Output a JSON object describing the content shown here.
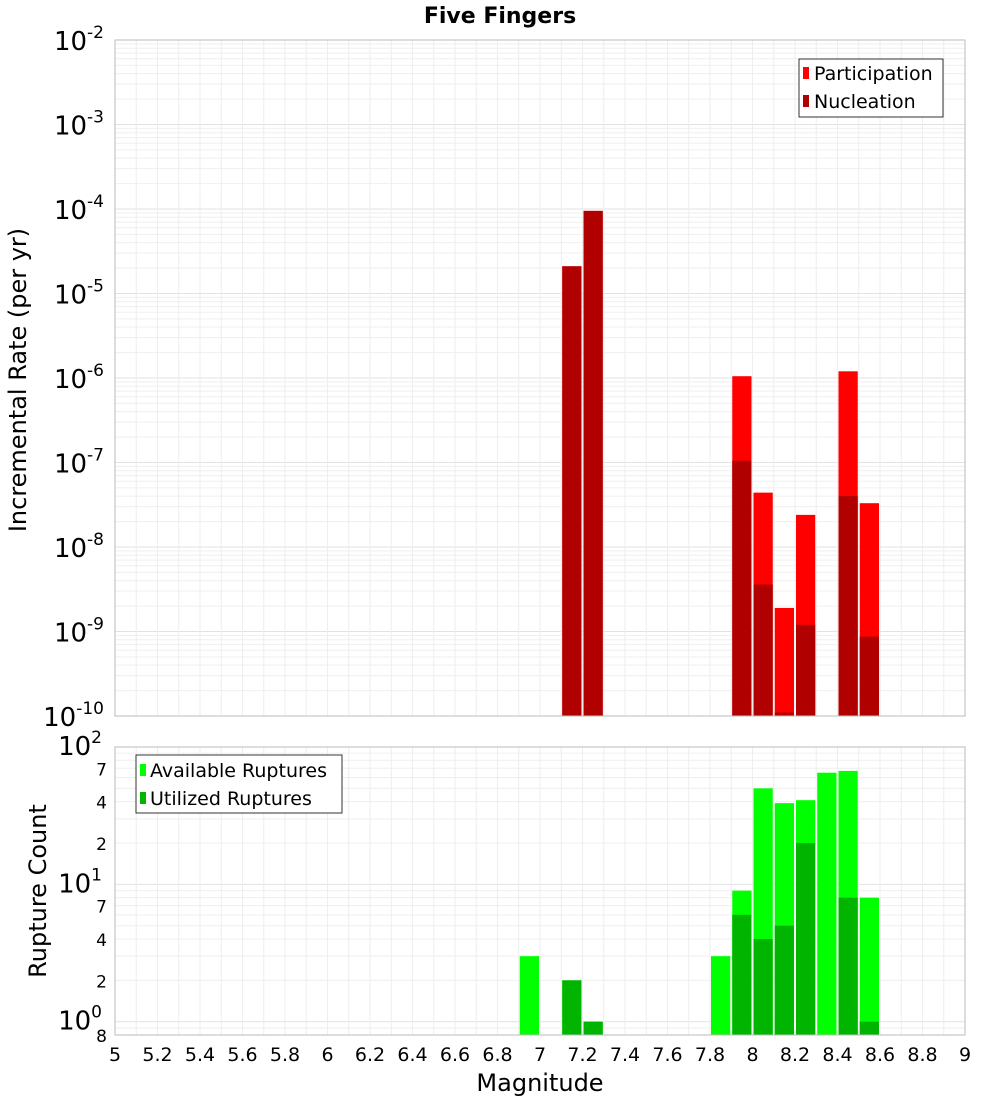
{
  "chart_data": [
    {
      "type": "bar",
      "title": "Five Fingers",
      "ylabel": "Incremental Rate (per yr)",
      "y_scale": "log",
      "ylim": [
        1e-10,
        0.01
      ],
      "y_ticks": [
        {
          "base": "10",
          "exp": "-2"
        },
        {
          "base": "10",
          "exp": "-3"
        },
        {
          "base": "10",
          "exp": "-4"
        },
        {
          "base": "10",
          "exp": "-5"
        },
        {
          "base": "10",
          "exp": "-6"
        },
        {
          "base": "10",
          "exp": "-7"
        },
        {
          "base": "10",
          "exp": "-8"
        },
        {
          "base": "10",
          "exp": "-9"
        },
        {
          "base": "10",
          "exp": "-10"
        }
      ],
      "legend_position": "top-right",
      "grid": true,
      "series": [
        {
          "name": "Participation",
          "color": "#ff0000",
          "x": [
            7.15,
            7.25,
            7.95,
            8.05,
            8.15,
            8.25,
            8.45,
            8.55
          ],
          "values": [
            2.1e-05,
            9.5e-05,
            1.05e-06,
            4.4e-08,
            1.9e-09,
            2.4e-08,
            1.2e-06,
            3.3e-08
          ]
        },
        {
          "name": "Nucleation",
          "color": "#b00000",
          "x": [
            7.15,
            7.25,
            7.95,
            8.05,
            8.15,
            8.25,
            8.45,
            8.55
          ],
          "values": [
            2.1e-05,
            9.5e-05,
            1.05e-07,
            3.6e-09,
            1.1e-10,
            1.2e-09,
            4e-08,
            8.7e-10
          ]
        }
      ]
    },
    {
      "type": "bar",
      "xlabel": "Magnitude",
      "ylabel": "Rupture Count",
      "x_ticks": [
        "5",
        "5.2",
        "5.4",
        "5.6",
        "5.8",
        "6",
        "6.2",
        "6.4",
        "6.6",
        "6.8",
        "7",
        "7.2",
        "7.4",
        "7.6",
        "7.8",
        "8",
        "8.2",
        "8.4",
        "8.6",
        "8.8",
        "9"
      ],
      "xlim": [
        5,
        9
      ],
      "y_scale": "log",
      "ylim": [
        0.8,
        100
      ],
      "y_major_ticks": [
        {
          "base": "10",
          "exp": "2"
        },
        {
          "base": "10",
          "exp": "1"
        },
        {
          "base": "10",
          "exp": "0"
        }
      ],
      "y_minor_ticks": [
        {
          "value": 70,
          "label": "7"
        },
        {
          "value": 40,
          "label": "4"
        },
        {
          "value": 20,
          "label": "2"
        },
        {
          "value": 7,
          "label": "7"
        },
        {
          "value": 4,
          "label": "4"
        },
        {
          "value": 2,
          "label": "2"
        },
        {
          "value": 0.8,
          "label": "8"
        }
      ],
      "legend_position": "top-left",
      "grid": true,
      "series": [
        {
          "name": "Available Ruptures",
          "color": "#00ff00",
          "x": [
            6.95,
            7.15,
            7.25,
            7.85,
            7.95,
            8.05,
            8.15,
            8.25,
            8.35,
            8.45,
            8.55
          ],
          "values": [
            3,
            2,
            1,
            3,
            9,
            50,
            39,
            41,
            65,
            67,
            8
          ]
        },
        {
          "name": "Utilized Ruptures",
          "color": "#00b400",
          "x": [
            7.15,
            7.25,
            7.95,
            8.05,
            8.15,
            8.25,
            8.45,
            8.55
          ],
          "values": [
            2,
            1,
            6,
            4,
            5,
            20,
            8,
            1
          ]
        }
      ]
    }
  ]
}
